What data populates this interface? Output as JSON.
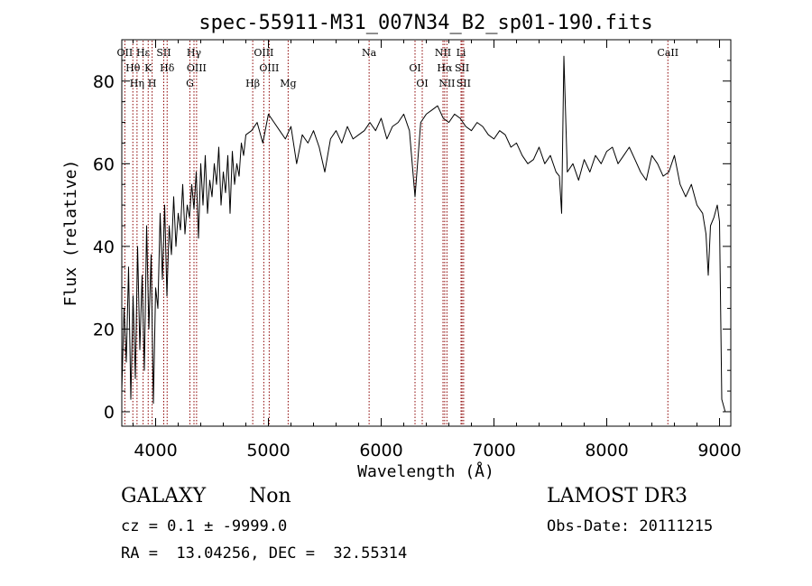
{
  "chart_data": {
    "type": "line",
    "title": "spec-55911-M31_007N34_B2_sp01-190.fits",
    "xlabel": "Wavelength (Å)",
    "ylabel": "Flux (relative)",
    "xlim": [
      3700,
      9100
    ],
    "ylim": [
      -3.5,
      90
    ],
    "xticks": [
      4000,
      5000,
      6000,
      7000,
      8000,
      9000
    ],
    "yticks": [
      0,
      20,
      40,
      60,
      80
    ],
    "grid": false,
    "legend": "none",
    "line_color": "#000000",
    "marker_color": "#8b0000",
    "series": [
      {
        "x": [
          3700,
          3720,
          3740,
          3760,
          3780,
          3800,
          3820,
          3840,
          3860,
          3880,
          3900,
          3920,
          3940,
          3960,
          3980,
          4000,
          4020,
          4040,
          4060,
          4080,
          4100,
          4120,
          4140,
          4160,
          4180,
          4200,
          4220,
          4240,
          4260,
          4280,
          4300,
          4320,
          4340,
          4360,
          4380,
          4400,
          4420,
          4440,
          4460,
          4480,
          4500,
          4520,
          4540,
          4560,
          4580,
          4600,
          4620,
          4640,
          4660,
          4680,
          4700,
          4720,
          4740,
          4760,
          4780,
          4800,
          4850,
          4900,
          4950,
          5000,
          5050,
          5100,
          5150,
          5200,
          5250,
          5300,
          5350,
          5400,
          5450,
          5500,
          5550,
          5600,
          5650,
          5700,
          5750,
          5800,
          5850,
          5900,
          5950,
          6000,
          6050,
          6100,
          6150,
          6200,
          6250,
          6300,
          6350,
          6400,
          6450,
          6500,
          6550,
          6600,
          6650,
          6700,
          6750,
          6800,
          6850,
          6900,
          6950,
          7000,
          7050,
          7100,
          7150,
          7200,
          7250,
          7300,
          7350,
          7400,
          7450,
          7500,
          7550,
          7580,
          7600,
          7620,
          7650,
          7700,
          7750,
          7800,
          7850,
          7900,
          7950,
          8000,
          8050,
          8100,
          8150,
          8200,
          8250,
          8300,
          8350,
          8400,
          8450,
          8500,
          8550,
          8600,
          8650,
          8700,
          8750,
          8800,
          8850,
          8880,
          8900,
          8920,
          8950,
          8980,
          9000,
          9020,
          9050
        ],
        "y": [
          5,
          25,
          12,
          35,
          3,
          28,
          8,
          40,
          15,
          33,
          10,
          45,
          20,
          38,
          2,
          30,
          25,
          48,
          32,
          50,
          28,
          45,
          38,
          52,
          40,
          48,
          44,
          55,
          43,
          50,
          47,
          55,
          49,
          58,
          42,
          60,
          50,
          62,
          48,
          56,
          52,
          60,
          55,
          64,
          50,
          58,
          53,
          62,
          48,
          63,
          55,
          60,
          57,
          65,
          62,
          67,
          68,
          70,
          65,
          72,
          70,
          68,
          66,
          69,
          60,
          67,
          65,
          68,
          64,
          58,
          66,
          68,
          65,
          69,
          66,
          67,
          68,
          70,
          68,
          71,
          66,
          69,
          70,
          72,
          68,
          52,
          70,
          72,
          73,
          74,
          71,
          70,
          72,
          71,
          69,
          68,
          70,
          69,
          67,
          66,
          68,
          67,
          64,
          65,
          62,
          60,
          61,
          64,
          60,
          62,
          58,
          57,
          48,
          86,
          58,
          60,
          56,
          61,
          58,
          62,
          60,
          63,
          64,
          60,
          62,
          64,
          61,
          58,
          56,
          62,
          60,
          57,
          58,
          62,
          55,
          52,
          55,
          50,
          48,
          43,
          33,
          45,
          47,
          50,
          46,
          3,
          0
        ]
      }
    ],
    "markers": [
      {
        "label": "OII",
        "x": 3727
      },
      {
        "label": "Hθ",
        "x": 3798
      },
      {
        "label": "Hη",
        "x": 3835
      },
      {
        "label": "Hε",
        "x": 3889
      },
      {
        "label": "K",
        "x": 3934
      },
      {
        "label": "H",
        "x": 3969
      },
      {
        "label": "SII",
        "x": 4072
      },
      {
        "label": "Hδ",
        "x": 4102
      },
      {
        "label": "G",
        "x": 4304
      },
      {
        "label": "Hγ",
        "x": 4340
      },
      {
        "label": "OIII",
        "x": 4363
      },
      {
        "label": "Hβ",
        "x": 4861
      },
      {
        "label": "OIII",
        "x": 4959
      },
      {
        "label": "OIII",
        "x": 5007
      },
      {
        "label": "Mg",
        "x": 5175
      },
      {
        "label": "Na",
        "x": 5893
      },
      {
        "label": "OI",
        "x": 6300
      },
      {
        "label": "OI",
        "x": 6364
      },
      {
        "label": "NII",
        "x": 6548
      },
      {
        "label": "Hα",
        "x": 6563
      },
      {
        "label": "NII",
        "x": 6583
      },
      {
        "label": "Li",
        "x": 6708
      },
      {
        "label": "SII",
        "x": 6717
      },
      {
        "label": "SII",
        "x": 6731
      },
      {
        "label": "CaII",
        "x": 8542
      }
    ]
  },
  "info": {
    "class": "GALAXY",
    "subclass": "Non",
    "survey": "LAMOST DR3",
    "cz": "cz = 0.1 ± -9999.0",
    "obs_date": "Obs-Date: 20111215",
    "coords": "RA =  13.04256, DEC =  32.55314"
  }
}
